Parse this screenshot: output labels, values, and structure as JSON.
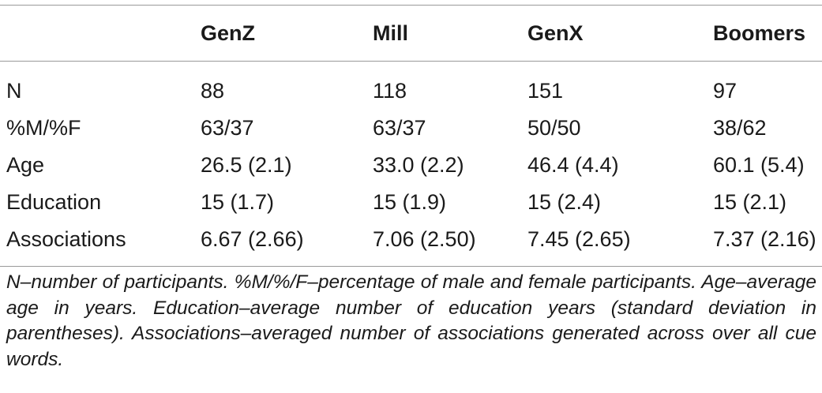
{
  "table": {
    "columns": [
      "",
      "GenZ",
      "Mill",
      "GenX",
      "Boomers"
    ],
    "rows": [
      {
        "label": "N",
        "values": [
          "88",
          "118",
          "151",
          "97"
        ]
      },
      {
        "label": "%M/%F",
        "values": [
          "63/37",
          "63/37",
          "50/50",
          "38/62"
        ]
      },
      {
        "label": "Age",
        "values": [
          "26.5 (2.1)",
          "33.0 (2.2)",
          "46.4 (4.4)",
          "60.1 (5.4)"
        ]
      },
      {
        "label": "Education",
        "values": [
          "15 (1.7)",
          "15 (1.9)",
          "15 (2.4)",
          "15 (2.1)"
        ]
      },
      {
        "label": "Associations",
        "values": [
          "6.67 (2.66)",
          "7.06 (2.50)",
          "7.45 (2.65)",
          "7.37 (2.16)"
        ]
      }
    ]
  },
  "footnote": "N–number of participants. %M/%/F–percentage of male and female participants. Age–average age in years. Education–average number of education years (standard deviation in parentheses). Associations–averaged number of associations generated across over all cue words."
}
